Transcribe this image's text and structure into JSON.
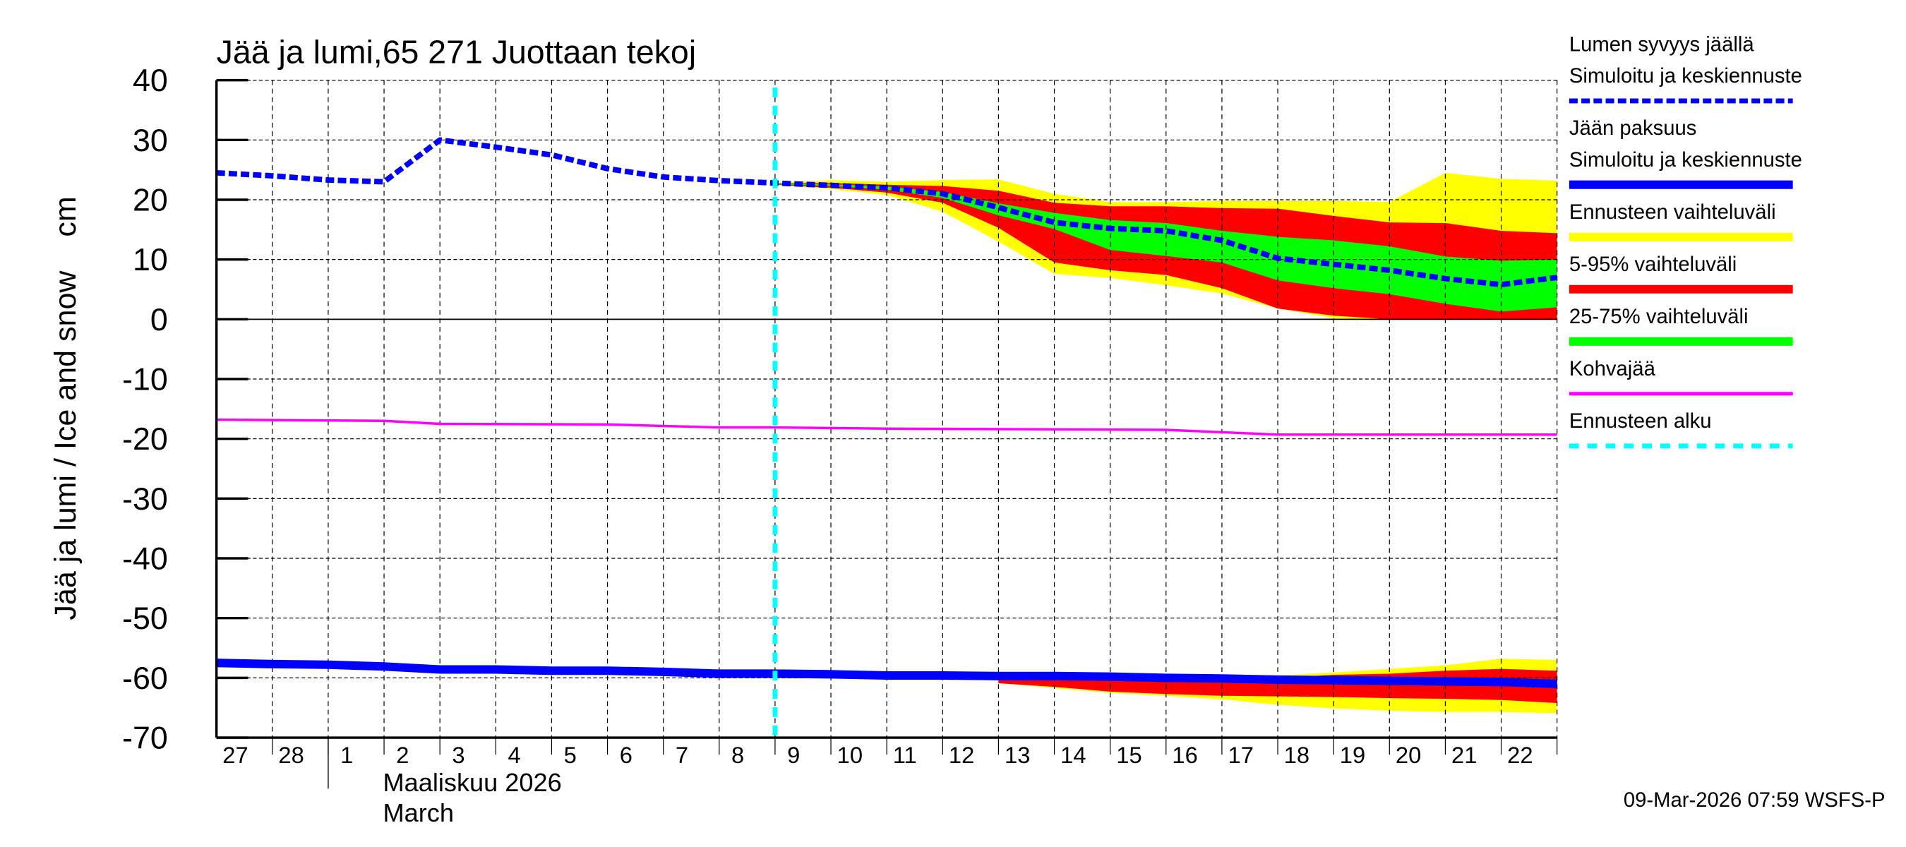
{
  "chart_data": {
    "type": "area",
    "title": "Jää ja lumi,65 271 Juottaan tekoj",
    "ylabel": "Jää ja lumi / Ice and snow    cm",
    "xlabel_lines": [
      "Maaliskuu 2026",
      "March"
    ],
    "ylim": [
      -70,
      40
    ],
    "yticks": [
      40,
      30,
      20,
      10,
      0,
      -10,
      -20,
      -30,
      -40,
      -50,
      -60,
      -70
    ],
    "xlim": [
      "2026-02-27",
      "2026-03-23"
    ],
    "xtick_labels": [
      "27",
      "28",
      "1",
      "2",
      "3",
      "4",
      "5",
      "6",
      "7",
      "8",
      "9",
      "10",
      "11",
      "12",
      "13",
      "14",
      "15",
      "16",
      "17",
      "18",
      "19",
      "20",
      "21",
      "22"
    ],
    "grid": true,
    "legend_placement": "right",
    "forecast_start": "2026-03-09",
    "footer": "09-Mar-2026 07:59 WSFS-P",
    "colors": {
      "snow": "#0000ff",
      "ice": "#0000ff",
      "full_range": "#ffff00",
      "p5_95": "#ff0000",
      "p25_75": "#00ff00",
      "slush": "#ff00ff",
      "forecast_start": "#00ffff"
    },
    "legend": [
      {
        "key": "snow",
        "lines": [
          "Lumen syvyys jäällä",
          "Simuloitu ja keskiennuste"
        ],
        "style": "dashed-thick"
      },
      {
        "key": "ice",
        "lines": [
          "Jään paksuus",
          "Simuloitu ja keskiennuste"
        ],
        "style": "solid-thick"
      },
      {
        "key": "full_range",
        "lines": [
          "Ennusteen vaihteluväli"
        ],
        "style": "band"
      },
      {
        "key": "p5_95",
        "lines": [
          "5-95% vaihteluväli"
        ],
        "style": "band"
      },
      {
        "key": "p25_75",
        "lines": [
          "25-75% vaihteluväli"
        ],
        "style": "band"
      },
      {
        "key": "slush",
        "lines": [
          "Kohvajää"
        ],
        "style": "solid"
      },
      {
        "key": "forecast_start",
        "lines": [
          "Ennusteen alku"
        ],
        "style": "dashed-cyan"
      }
    ],
    "series": {
      "snow": {
        "x": [
          "2026-02-27",
          "2026-02-28",
          "2026-03-01",
          "2026-03-02",
          "2026-03-03",
          "2026-03-04",
          "2026-03-05",
          "2026-03-06",
          "2026-03-07",
          "2026-03-08",
          "2026-03-09",
          "2026-03-10",
          "2026-03-11",
          "2026-03-12",
          "2026-03-13",
          "2026-03-14",
          "2026-03-15",
          "2026-03-16",
          "2026-03-17",
          "2026-03-18",
          "2026-03-19",
          "2026-03-20",
          "2026-03-21",
          "2026-03-22",
          "2026-03-23"
        ],
        "y": [
          24.5,
          24.0,
          23.3,
          23.0,
          30.0,
          28.8,
          27.5,
          25.2,
          23.8,
          23.2,
          22.8,
          22.4,
          22.0,
          21.0,
          18.7,
          16.2,
          15.2,
          14.8,
          13.2,
          10.2,
          9.2,
          8.2,
          6.8,
          5.8,
          7.0
        ]
      },
      "snow_bands": {
        "x": [
          "2026-03-09",
          "2026-03-10",
          "2026-03-11",
          "2026-03-12",
          "2026-03-13",
          "2026-03-14",
          "2026-03-15",
          "2026-03-16",
          "2026-03-17",
          "2026-03-18",
          "2026-03-19",
          "2026-03-20",
          "2026-03-21",
          "2026-03-22",
          "2026-03-23"
        ],
        "full_max": [
          22.8,
          23.3,
          23.0,
          23.3,
          23.4,
          21.0,
          19.6,
          19.6,
          19.8,
          19.8,
          19.8,
          19.6,
          24.5,
          23.5,
          23.2
        ],
        "p95": [
          22.8,
          22.8,
          22.5,
          22.3,
          21.5,
          19.5,
          18.9,
          18.9,
          18.6,
          18.5,
          17.3,
          16.2,
          16.1,
          14.8,
          14.4
        ],
        "p75": [
          22.8,
          22.6,
          22.2,
          21.3,
          19.4,
          17.8,
          16.6,
          16.1,
          14.8,
          13.8,
          13.2,
          12.2,
          10.5,
          9.8,
          10.0
        ],
        "p25": [
          22.6,
          22.3,
          21.7,
          20.3,
          17.4,
          15.1,
          11.6,
          10.6,
          9.5,
          6.5,
          5.2,
          4.2,
          2.6,
          1.3,
          2.0
        ],
        "p5": [
          22.5,
          22.0,
          21.2,
          19.5,
          15.3,
          9.5,
          8.2,
          7.4,
          5.2,
          1.8,
          0.6,
          0,
          0,
          0,
          0
        ],
        "full_min": [
          22.5,
          21.8,
          20.8,
          18.0,
          13.0,
          7.6,
          6.9,
          5.7,
          4.3,
          1.8,
          0.2,
          0,
          0,
          0,
          0
        ]
      },
      "ice": {
        "x": [
          "2026-02-27",
          "2026-02-28",
          "2026-03-01",
          "2026-03-02",
          "2026-03-03",
          "2026-03-04",
          "2026-03-05",
          "2026-03-06",
          "2026-03-07",
          "2026-03-08",
          "2026-03-09",
          "2026-03-10",
          "2026-03-11",
          "2026-03-12",
          "2026-03-13",
          "2026-03-14",
          "2026-03-15",
          "2026-03-16",
          "2026-03-17",
          "2026-03-18",
          "2026-03-19",
          "2026-03-20",
          "2026-03-21",
          "2026-03-22",
          "2026-03-23"
        ],
        "y": [
          -57.5,
          -57.7,
          -57.8,
          -58.1,
          -58.6,
          -58.6,
          -58.8,
          -58.8,
          -59.0,
          -59.3,
          -59.3,
          -59.4,
          -59.6,
          -59.6,
          -59.7,
          -59.7,
          -59.8,
          -60.0,
          -60.1,
          -60.3,
          -60.4,
          -60.5,
          -60.6,
          -60.7,
          -61.0
        ]
      },
      "ice_bands": {
        "x": [
          "2026-03-13",
          "2026-03-14",
          "2026-03-15",
          "2026-03-16",
          "2026-03-17",
          "2026-03-18",
          "2026-03-19",
          "2026-03-20",
          "2026-03-21",
          "2026-03-22",
          "2026-03-23"
        ],
        "full_max": [
          -59.7,
          -59.7,
          -59.8,
          -60.0,
          -60.1,
          -59.6,
          -59.1,
          -58.5,
          -57.9,
          -56.8,
          -57.0
        ],
        "p95": [
          -59.7,
          -59.7,
          -59.8,
          -60.0,
          -60.1,
          -60.0,
          -59.5,
          -59.3,
          -58.8,
          -58.5,
          -58.8
        ],
        "p5": [
          -60.9,
          -61.5,
          -62.3,
          -62.7,
          -63.0,
          -63.1,
          -63.2,
          -63.4,
          -63.5,
          -63.7,
          -64.2
        ],
        "full_min": [
          -60.9,
          -61.7,
          -62.5,
          -63.0,
          -63.6,
          -64.5,
          -65.1,
          -65.5,
          -65.7,
          -65.7,
          -65.9
        ]
      },
      "slush": {
        "x": [
          "2026-02-27",
          "2026-03-02",
          "2026-03-03",
          "2026-03-06",
          "2026-03-08",
          "2026-03-09",
          "2026-03-11",
          "2026-03-16",
          "2026-03-18",
          "2026-03-23"
        ],
        "y": [
          -16.8,
          -17.0,
          -17.5,
          -17.6,
          -18.1,
          -18.1,
          -18.3,
          -18.5,
          -19.3,
          -19.3
        ]
      }
    }
  }
}
